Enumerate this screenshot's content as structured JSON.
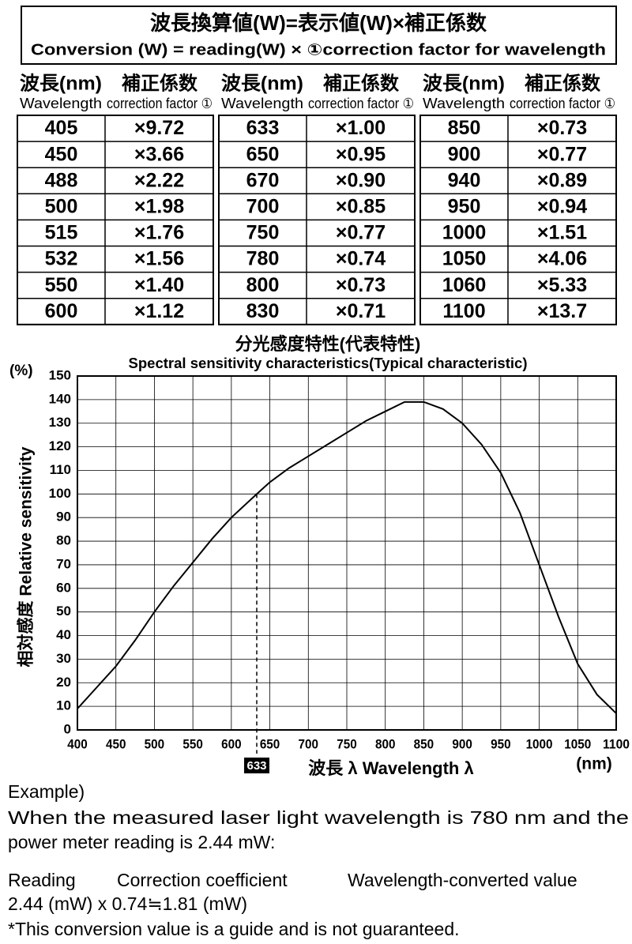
{
  "header": {
    "title": "波長換算値(W)=表示値(W)×補正係数",
    "subtitle": "Conversion (W) = reading(W)  × ①correction factor for wavelength"
  },
  "table": {
    "columns": [
      {
        "ja": "波長(nm)",
        "en": "Wavelength"
      },
      {
        "ja": "補正係数",
        "en": "correction factor ①"
      }
    ],
    "groups": [
      [
        [
          405,
          "×9.72"
        ],
        [
          450,
          "×3.66"
        ],
        [
          488,
          "×2.22"
        ],
        [
          500,
          "×1.98"
        ],
        [
          515,
          "×1.76"
        ],
        [
          532,
          "×1.56"
        ],
        [
          550,
          "×1.40"
        ],
        [
          600,
          "×1.12"
        ]
      ],
      [
        [
          633,
          "×1.00"
        ],
        [
          650,
          "×0.95"
        ],
        [
          670,
          "×0.90"
        ],
        [
          700,
          "×0.85"
        ],
        [
          750,
          "×0.77"
        ],
        [
          780,
          "×0.74"
        ],
        [
          800,
          "×0.73"
        ],
        [
          830,
          "×0.71"
        ]
      ],
      [
        [
          850,
          "×0.73"
        ],
        [
          900,
          "×0.77"
        ],
        [
          940,
          "×0.89"
        ],
        [
          950,
          "×0.94"
        ],
        [
          1000,
          "×1.51"
        ],
        [
          1050,
          "×4.06"
        ],
        [
          1060,
          "×5.33"
        ],
        [
          1100,
          "×13.7"
        ]
      ]
    ]
  },
  "chart_data": {
    "type": "line",
    "title": "分光感度特性(代表特性)",
    "subtitle": "Spectral sensitivity characteristics(Typical characteristic)",
    "y_unit": "(%)",
    "y_label": "相対感度 Relative sensitivity",
    "x_label": "波長 λ  Wavelength λ",
    "x_unit": "(nm)",
    "x": [
      400,
      425,
      450,
      475,
      500,
      525,
      550,
      575,
      600,
      633,
      650,
      675,
      700,
      725,
      750,
      775,
      800,
      825,
      850,
      875,
      900,
      925,
      950,
      975,
      1000,
      1025,
      1050,
      1075,
      1100
    ],
    "values": [
      9,
      18,
      27,
      38,
      50,
      61,
      71,
      81,
      90,
      100,
      105,
      111,
      116,
      121,
      126,
      131,
      135,
      139,
      139,
      136,
      130,
      121,
      109,
      92,
      70,
      48,
      28,
      15,
      7
    ],
    "color": "#000000",
    "xlim": [
      400,
      1100
    ],
    "ylim": [
      0,
      150
    ],
    "xticks": [
      400,
      450,
      500,
      550,
      600,
      650,
      700,
      750,
      800,
      850,
      900,
      950,
      1000,
      1050,
      1100
    ],
    "yticks": [
      0,
      10,
      20,
      30,
      40,
      50,
      60,
      70,
      80,
      90,
      100,
      110,
      120,
      130,
      140,
      150
    ],
    "grid": true,
    "annotations": [
      {
        "x": 633,
        "y": 100,
        "label": "633"
      }
    ]
  },
  "example": {
    "heading": "Example)",
    "lines": [
      "When the measured laser light wavelength is 780 nm and the",
      "power meter reading is 2.44 mW:"
    ],
    "headers": [
      "Reading",
      "Correction coefficient",
      "Wavelength-converted value"
    ],
    "formula": "2.44 (mW) x 0.74≒1.81 (mW)",
    "note": "*This conversion value is a guide and is not guaranteed."
  }
}
